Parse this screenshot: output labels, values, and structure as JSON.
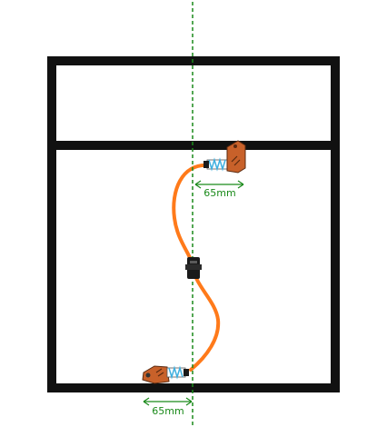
{
  "colors": {
    "frame": "#111111",
    "cable": "#ff7a1a",
    "guide_line": "#1a8a1a",
    "dimension": "#1a8a1a",
    "connector_body": "#c8612a",
    "spring": "#3fb0e0",
    "clip": "#1a1a1a"
  },
  "dimensions": {
    "top_label": "65mm",
    "bottom_label": "65mm"
  },
  "icons": {
    "top_connector": "cable-connector-icon",
    "bottom_connector": "cable-connector-icon",
    "middle_clip": "cable-clip-icon"
  }
}
